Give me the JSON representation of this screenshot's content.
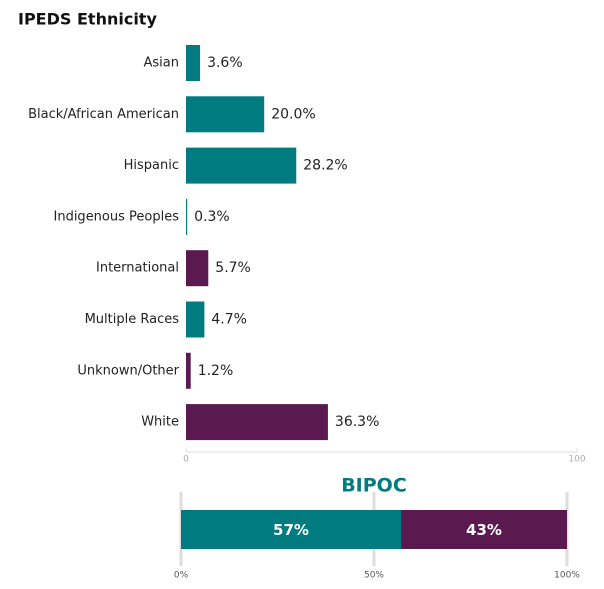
{
  "chart_data": [
    {
      "type": "hbar",
      "title": "IPEDS Ethnicity",
      "categories": [
        "Asian",
        "Black/African American",
        "Hispanic",
        "Indigenous Peoples",
        "International",
        "Multiple Races",
        "Unknown/Other",
        "White"
      ],
      "values": [
        3.6,
        20.0,
        28.2,
        0.3,
        5.7,
        4.7,
        1.2,
        36.3
      ],
      "value_labels": [
        "3.6%",
        "20.0%",
        "28.2%",
        "0.3%",
        "5.7%",
        "4.7%",
        "1.2%",
        "36.3%"
      ],
      "colors": [
        "#007b7f",
        "#007b7f",
        "#007b7f",
        "#007b7f",
        "#5a1a50",
        "#007b7f",
        "#5a1a50",
        "#5a1a50"
      ],
      "xlim": [
        0,
        100
      ],
      "xticks": [
        0,
        100
      ]
    },
    {
      "type": "stacked_hbar",
      "title": "BIPOC",
      "series": [
        {
          "color": "#007b7f",
          "values": [
            57
          ],
          "value_labels": [
            "57%"
          ]
        },
        {
          "color": "#5a1a50",
          "values": [
            43
          ],
          "value_labels": [
            "43%"
          ]
        }
      ],
      "xlim": [
        0,
        100
      ],
      "xticks": [
        {
          "value": 0,
          "label": "0%"
        },
        {
          "value": 50,
          "label": "50%"
        },
        {
          "value": 100,
          "label": "100%"
        }
      ],
      "grid": true
    }
  ]
}
